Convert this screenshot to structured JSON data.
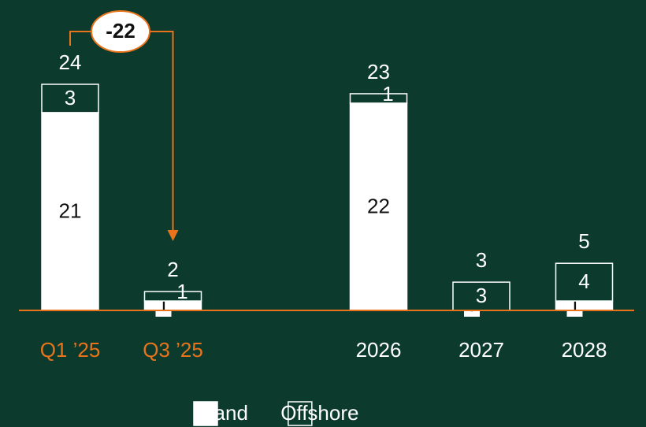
{
  "chart_data": {
    "type": "stacked_bar",
    "categories": [
      "Q1 ’25",
      "Q3 ’25",
      null,
      "2026",
      "2027",
      "2028"
    ],
    "category_label_colors": [
      "#e8731a",
      "#e8731a",
      null,
      "#ffffff",
      "#ffffff",
      "#ffffff"
    ],
    "series": [
      {
        "name": "Land",
        "color": "#ffffff",
        "values": [
          21,
          1,
          null,
          22,
          0,
          1
        ]
      },
      {
        "name": "Offshore",
        "color": "#0c3b2e",
        "values": [
          3,
          1,
          null,
          1,
          3,
          4
        ]
      }
    ],
    "totals": [
      24,
      2,
      null,
      23,
      3,
      5
    ],
    "annotation": "-22",
    "ylim": [
      0,
      24
    ],
    "axis_color": "#e8731a"
  }
}
